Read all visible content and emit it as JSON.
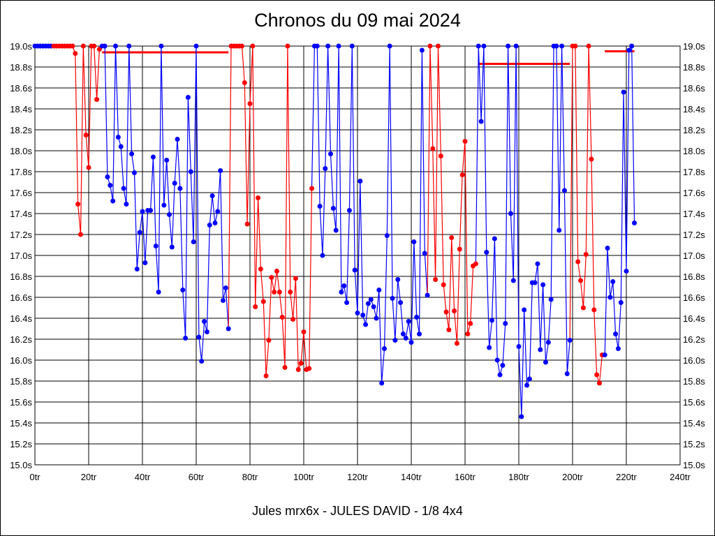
{
  "chart_data": {
    "type": "line",
    "title": "Chronos du 09 mai 2024",
    "xlabel": "Jules mrx6x - JULES DAVID - 1/8 4x4",
    "ylabel": "",
    "xlim": [
      0,
      240
    ],
    "ylim": [
      15.0,
      19.0
    ],
    "x_unit": "tr",
    "y_unit": "s",
    "x_ticks": [
      "0tr",
      "20tr",
      "40tr",
      "60tr",
      "80tr",
      "100tr",
      "120tr",
      "140tr",
      "160tr",
      "180tr",
      "200tr",
      "220tr",
      "240tr"
    ],
    "y_ticks": [
      "15.0s",
      "15.2s",
      "15.4s",
      "15.6s",
      "15.8s",
      "16.0s",
      "16.2s",
      "16.4s",
      "16.6s",
      "16.8s",
      "17.0s",
      "17.2s",
      "17.4s",
      "17.6s",
      "17.8s",
      "18.0s",
      "18.2s",
      "18.4s",
      "18.6s",
      "18.8s",
      "19.0s"
    ],
    "y_ticks_both_sides": true,
    "grid": true,
    "colors": {
      "blue": "#0000ff",
      "red": "#ff0000"
    },
    "values": [
      19,
      19,
      19,
      19,
      19,
      19,
      19,
      19,
      19,
      19,
      19,
      19,
      19,
      19,
      19,
      18.93,
      17.49,
      17.2,
      19,
      18.15,
      17.84,
      19,
      19,
      18.49,
      18.97,
      19,
      19,
      17.75,
      17.67,
      17.52,
      19,
      18.13,
      18.04,
      17.64,
      17.49,
      19,
      17.97,
      17.79,
      16.87,
      17.22,
      17.42,
      16.93,
      17.43,
      17.43,
      17.94,
      17.09,
      16.65,
      19,
      17.48,
      17.91,
      17.39,
      17.08,
      17.69,
      18.11,
      17.64,
      16.67,
      16.21,
      18.51,
      17.8,
      17.13,
      19,
      16.22,
      15.99,
      16.37,
      16.27,
      17.29,
      17.57,
      17.31,
      17.42,
      17.81,
      16.57,
      16.69,
      16.3,
      19,
      19,
      19,
      19,
      19,
      18.65,
      17.3,
      18.45,
      19,
      16.51,
      17.55,
      16.87,
      16.56,
      15.85,
      16.19,
      16.79,
      16.65,
      16.85,
      16.65,
      16.41,
      15.93,
      19,
      16.65,
      16.39,
      16.78,
      15.91,
      15.97,
      16.27,
      15.91,
      15.92,
      17.64,
      19,
      19,
      17.47,
      17.0,
      17.83,
      19,
      17.97,
      17.45,
      17.24,
      19,
      16.65,
      16.71,
      16.55,
      17.43,
      19,
      16.86,
      16.45,
      17.71,
      16.43,
      16.34,
      16.54,
      16.58,
      16.51,
      16.4,
      16.67,
      15.78,
      16.11,
      17.19,
      19,
      16.59,
      16.19,
      16.77,
      16.55,
      16.25,
      16.21,
      16.37,
      16.17,
      17.13,
      16.41,
      16.25,
      18.96,
      17.02,
      16.62,
      19,
      18.02,
      16.77,
      19,
      17.95,
      16.72,
      16.46,
      16.29,
      17.17,
      16.47,
      16.16,
      17.06,
      17.77,
      18.09,
      16.25,
      16.35,
      16.9,
      16.92,
      19,
      18.28,
      19,
      17.03,
      16.12,
      16.38,
      17.16,
      16.0,
      15.86,
      15.95,
      16.35,
      19,
      17.4,
      16.76,
      19,
      16.13,
      15.46,
      16.48,
      15.76,
      15.82,
      16.74,
      16.74,
      16.92,
      16.1,
      16.72,
      15.98,
      16.17,
      16.58,
      19,
      19,
      17.24,
      19,
      17.62,
      15.87,
      16.19,
      19,
      19,
      16.94,
      16.76,
      16.5,
      17.01,
      19,
      17.92,
      16.48,
      15.86,
      15.78,
      16.05,
      16.05,
      17.07,
      16.6,
      16.75,
      16.25,
      16.11,
      16.55,
      18.56,
      16.85,
      18.96,
      19.0,
      17.31
    ],
    "segments": [
      {
        "from": 0,
        "to": 6,
        "color": "#0000ff"
      },
      {
        "from": 7,
        "to": 24,
        "color": "#ff0000"
      },
      {
        "from": 25,
        "to": 72,
        "color": "#0000ff"
      },
      {
        "from": 73,
        "to": 103,
        "color": "#ff0000"
      },
      {
        "from": 104,
        "to": 146,
        "color": "#0000ff"
      },
      {
        "from": 147,
        "to": 164,
        "color": "#ff0000"
      },
      {
        "from": 165,
        "to": 199,
        "color": "#0000ff"
      },
      {
        "from": 200,
        "to": 211,
        "color": "#ff0000"
      },
      {
        "from": 212,
        "to": 223,
        "color": "#0000ff"
      }
    ],
    "reference_lines": [
      {
        "from": 25,
        "to": 72,
        "y": 18.94,
        "color": "#ff0000"
      },
      {
        "from": 165,
        "to": 199,
        "y": 18.83,
        "color": "#ff0000"
      },
      {
        "from": 212,
        "to": 223,
        "y": 18.95,
        "color": "#ff0000"
      }
    ]
  }
}
